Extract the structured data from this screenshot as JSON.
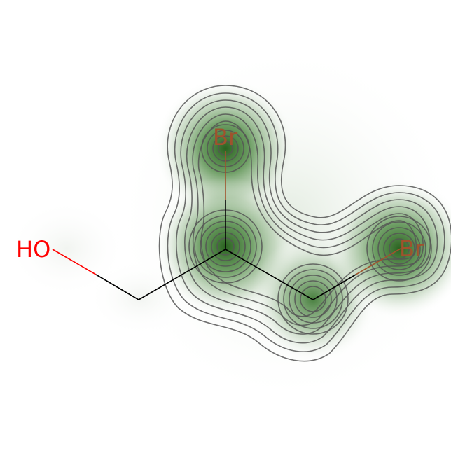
{
  "molecule": {
    "atoms": [
      {
        "id": "O1",
        "element": "O",
        "label": "HO",
        "color": "#ff0000"
      },
      {
        "id": "C1",
        "element": "C",
        "label": ""
      },
      {
        "id": "C2",
        "element": "C",
        "label": ""
      },
      {
        "id": "Br1",
        "element": "Br",
        "label": "Br",
        "color": "#a0522d"
      },
      {
        "id": "C3",
        "element": "C",
        "label": ""
      },
      {
        "id": "Br2",
        "element": "Br",
        "label": "Br",
        "color": "#a0522d"
      }
    ],
    "bonds": [
      {
        "from": "O1",
        "to": "C1",
        "order": 1
      },
      {
        "from": "C1",
        "to": "C2",
        "order": 1
      },
      {
        "from": "C2",
        "to": "Br1",
        "order": 1
      },
      {
        "from": "C2",
        "to": "C3",
        "order": 1
      },
      {
        "from": "C3",
        "to": "Br2",
        "order": 1
      }
    ]
  },
  "colors": {
    "bond": "#000000",
    "oxygen": "#ff0000",
    "bromine": "#a0522d",
    "density_fill": "#2e6b1f",
    "contour_line": "#555555",
    "background": "#ffffff"
  }
}
